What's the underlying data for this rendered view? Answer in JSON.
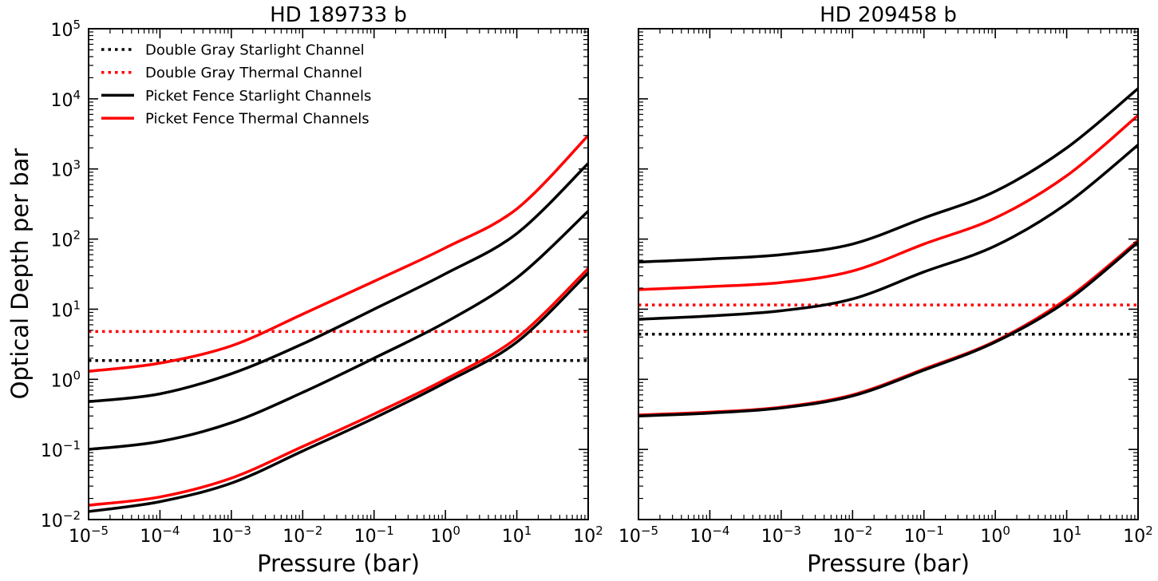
{
  "shared": {
    "ylabel": "Optical Depth per bar",
    "x_ticks": [
      {
        "base": "10",
        "exp": "−5",
        "v": -5
      },
      {
        "base": "10",
        "exp": "−4",
        "v": -4
      },
      {
        "base": "10",
        "exp": "−3",
        "v": -3
      },
      {
        "base": "10",
        "exp": "−2",
        "v": -2
      },
      {
        "base": "10",
        "exp": "−1",
        "v": -1
      },
      {
        "base": "10",
        "exp": "0",
        "v": 0
      },
      {
        "base": "10",
        "exp": "1",
        "v": 1
      },
      {
        "base": "10",
        "exp": "2",
        "v": 2
      }
    ],
    "y_ticks": [
      {
        "base": "10",
        "exp": "−2",
        "v": -2
      },
      {
        "base": "10",
        "exp": "−1",
        "v": -1
      },
      {
        "base": "10",
        "exp": "0",
        "v": 0
      },
      {
        "base": "10",
        "exp": "1",
        "v": 1
      },
      {
        "base": "10",
        "exp": "2",
        "v": 2
      },
      {
        "base": "10",
        "exp": "3",
        "v": 3
      },
      {
        "base": "10",
        "exp": "4",
        "v": 4
      },
      {
        "base": "10",
        "exp": "5",
        "v": 5
      }
    ],
    "legend": [
      {
        "label": "Double Gray Starlight Channel",
        "color": "#000000",
        "style": "dotted"
      },
      {
        "label": "Double Gray Thermal Channel",
        "color": "#ff0000",
        "style": "dotted"
      },
      {
        "label": "Picket Fence Starlight Channels",
        "color": "#000000",
        "style": "solid"
      },
      {
        "label": "Picket Fence Thermal Channels",
        "color": "#ff0000",
        "style": "solid"
      }
    ]
  },
  "chart_data": [
    {
      "type": "line",
      "title": "HD 189733 b",
      "xlabel": "Pressure (bar)",
      "ylabel": "Optical Depth per bar",
      "xscale": "log",
      "yscale": "log",
      "xlim": [
        1e-05,
        100
      ],
      "ylim": [
        0.01,
        100000
      ],
      "legend_position": "top-left",
      "series": [
        {
          "name": "Double Gray Starlight Channel",
          "color": "#000000",
          "style": "dotted",
          "x": [
            1e-05,
            100
          ],
          "y": [
            1.85,
            1.85
          ]
        },
        {
          "name": "Double Gray Thermal Channel",
          "color": "#ff0000",
          "style": "dotted",
          "x": [
            1e-05,
            100
          ],
          "y": [
            4.8,
            4.8
          ]
        },
        {
          "name": "Picket Fence Thermal Channel 1",
          "color": "#ff0000",
          "style": "solid",
          "x": [
            1e-05,
            0.0001,
            0.001,
            0.01,
            0.1,
            1,
            10,
            100
          ],
          "y": [
            1.3,
            1.7,
            3.0,
            8.5,
            25,
            75,
            270,
            3000
          ]
        },
        {
          "name": "Picket Fence Starlight Channel 1",
          "color": "#000000",
          "style": "solid",
          "x": [
            1e-05,
            0.0001,
            0.001,
            0.01,
            0.1,
            1,
            10,
            100
          ],
          "y": [
            0.48,
            0.62,
            1.2,
            3.2,
            10,
            32,
            120,
            1200
          ]
        },
        {
          "name": "Picket Fence Starlight Channel 2",
          "color": "#000000",
          "style": "solid",
          "x": [
            1e-05,
            0.0001,
            0.001,
            0.01,
            0.1,
            1,
            10,
            100
          ],
          "y": [
            0.1,
            0.13,
            0.24,
            0.65,
            2.0,
            6.5,
            28,
            250
          ]
        },
        {
          "name": "Picket Fence Thermal Channel 2",
          "color": "#ff0000",
          "style": "solid",
          "x": [
            1e-05,
            0.0001,
            0.001,
            0.01,
            0.1,
            1,
            10,
            100
          ],
          "y": [
            0.016,
            0.021,
            0.039,
            0.11,
            0.32,
            1.0,
            3.9,
            38
          ]
        },
        {
          "name": "Picket Fence Starlight Channel 3",
          "color": "#000000",
          "style": "solid",
          "x": [
            1e-05,
            0.0001,
            0.001,
            0.01,
            0.1,
            1,
            10,
            100
          ],
          "y": [
            0.013,
            0.018,
            0.033,
            0.095,
            0.28,
            0.9,
            3.4,
            33
          ]
        }
      ]
    },
    {
      "type": "line",
      "title": "HD 209458 b",
      "xlabel": "Pressure (bar)",
      "xscale": "log",
      "yscale": "log",
      "xlim": [
        1e-05,
        100
      ],
      "ylim": [
        0.01,
        100000
      ],
      "series": [
        {
          "name": "Double Gray Starlight Channel",
          "color": "#000000",
          "style": "dotted",
          "x": [
            1e-05,
            100
          ],
          "y": [
            4.4,
            4.4
          ]
        },
        {
          "name": "Double Gray Thermal Channel",
          "color": "#ff0000",
          "style": "dotted",
          "x": [
            1e-05,
            100
          ],
          "y": [
            11.5,
            11.5
          ]
        },
        {
          "name": "Picket Fence Starlight Channel 1",
          "color": "#000000",
          "style": "solid",
          "x": [
            1e-05,
            0.0001,
            0.001,
            0.01,
            0.1,
            1,
            10,
            100
          ],
          "y": [
            47,
            52,
            60,
            85,
            200,
            480,
            2000,
            14000
          ]
        },
        {
          "name": "Picket Fence Thermal Channel 1",
          "color": "#ff0000",
          "style": "solid",
          "x": [
            1e-05,
            0.0001,
            0.001,
            0.01,
            0.1,
            1,
            10,
            100
          ],
          "y": [
            19,
            21,
            24,
            35,
            85,
            200,
            800,
            5800
          ]
        },
        {
          "name": "Picket Fence Starlight Channel 2",
          "color": "#000000",
          "style": "solid",
          "x": [
            1e-05,
            0.0001,
            0.001,
            0.01,
            0.1,
            1,
            10,
            100
          ],
          "y": [
            7.2,
            8.0,
            9.5,
            14,
            34,
            80,
            320,
            2200
          ]
        },
        {
          "name": "Picket Fence Thermal Channel 2",
          "color": "#ff0000",
          "style": "solid",
          "x": [
            1e-05,
            0.0001,
            0.001,
            0.01,
            0.1,
            1,
            10,
            100
          ],
          "y": [
            0.31,
            0.34,
            0.4,
            0.6,
            1.4,
            3.5,
            14,
            95
          ]
        },
        {
          "name": "Picket Fence Starlight Channel 3",
          "color": "#000000",
          "style": "solid",
          "x": [
            1e-05,
            0.0001,
            0.001,
            0.01,
            0.1,
            1,
            10,
            100
          ],
          "y": [
            0.3,
            0.33,
            0.39,
            0.58,
            1.35,
            3.4,
            13,
            90
          ]
        }
      ]
    }
  ]
}
